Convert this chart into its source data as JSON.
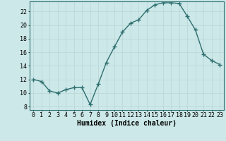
{
  "x": [
    0,
    1,
    2,
    3,
    4,
    5,
    6,
    7,
    8,
    9,
    10,
    11,
    12,
    13,
    14,
    15,
    16,
    17,
    18,
    19,
    20,
    21,
    22,
    23
  ],
  "y": [
    12,
    11.7,
    10.3,
    10.0,
    10.5,
    10.8,
    10.8,
    8.3,
    11.3,
    14.5,
    16.8,
    19.0,
    20.3,
    20.8,
    22.2,
    23.0,
    23.3,
    23.3,
    23.2,
    21.3,
    19.3,
    15.7,
    14.8,
    14.2
  ],
  "line_color": "#2e6e6e",
  "marker": "+",
  "marker_color": "#2e6e6e",
  "xlabel": "Humidex (Indice chaleur)",
  "xlim": [
    -0.5,
    23.5
  ],
  "ylim": [
    7.5,
    23.5
  ],
  "yticks": [
    8,
    10,
    12,
    14,
    16,
    18,
    20,
    22
  ],
  "xticks": [
    0,
    1,
    2,
    3,
    4,
    5,
    6,
    7,
    8,
    9,
    10,
    11,
    12,
    13,
    14,
    15,
    16,
    17,
    18,
    19,
    20,
    21,
    22,
    23
  ],
  "bg_color": "#cce8e8",
  "grid_color": "#b8d4d4",
  "axis_color": "#2e6e6e",
  "xlabel_fontsize": 7,
  "tick_fontsize": 6,
  "linewidth": 1.0,
  "markersize": 4
}
